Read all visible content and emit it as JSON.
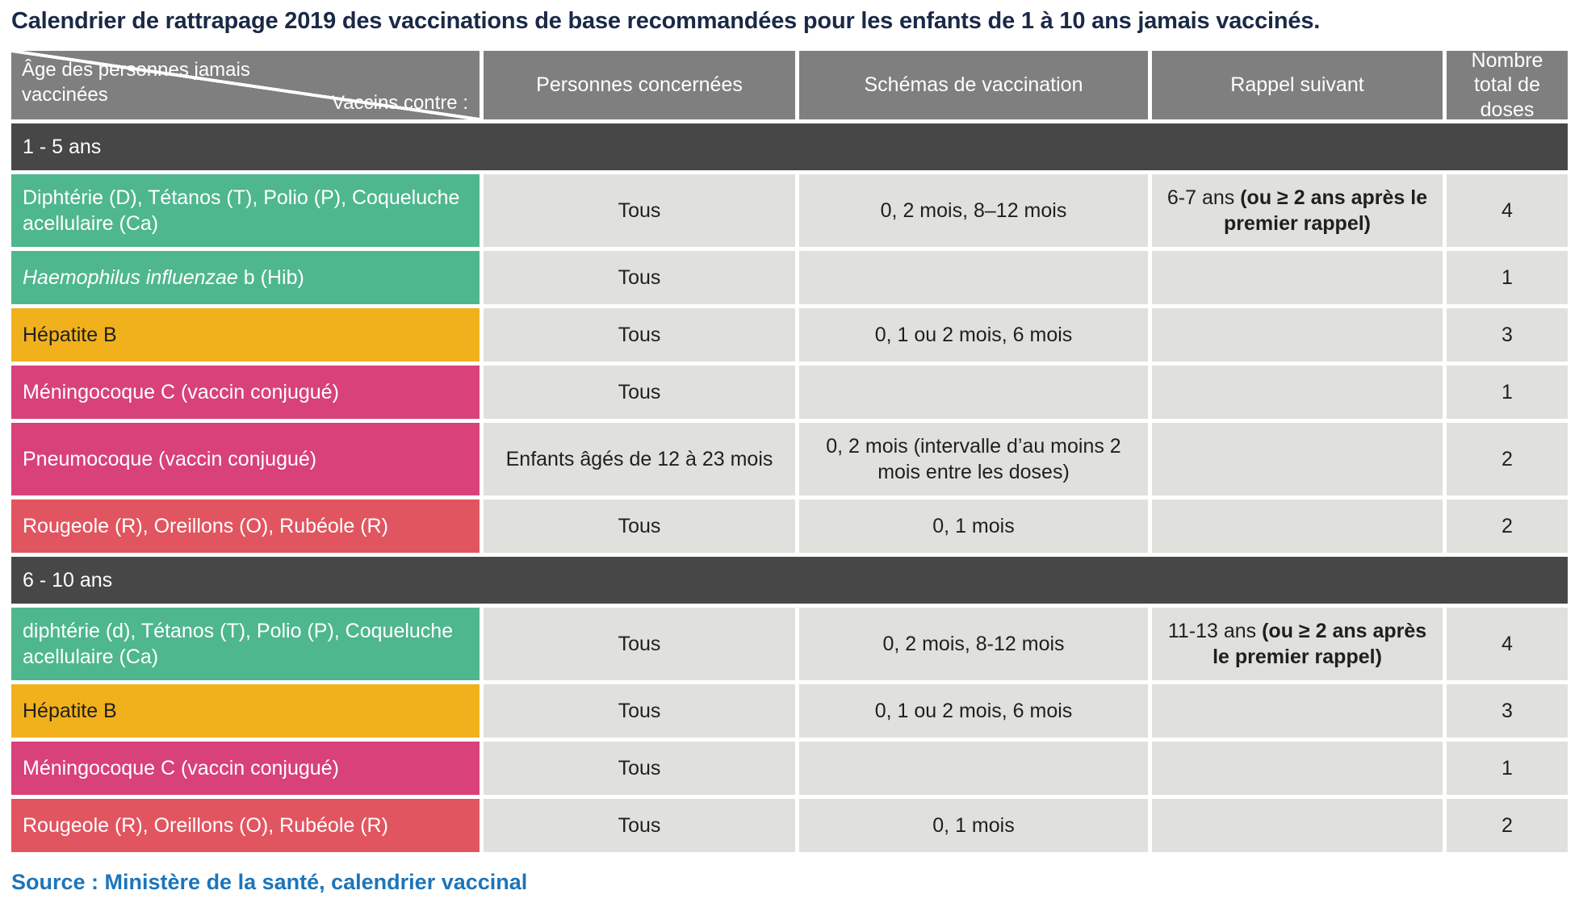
{
  "title": "Calendrier de rattrapage 2019 des vaccinations de base recommandées pour les enfants de 1 à 10 ans jamais vaccinés.",
  "colors": {
    "header_gray": "#7f7f7f",
    "section_dark": "#474747",
    "cell_light": "#e0e0dc",
    "row_green": "#4eb78d",
    "row_yellow": "#f1b11c",
    "row_pink": "#d84179",
    "row_red": "#e15560",
    "title_navy": "#1a2946",
    "source_blue": "#1c75bb"
  },
  "header": {
    "corner_top": "Âge des personnes jamais vaccinées",
    "corner_bottom": "Vaccins contre :",
    "col_personnes": "Personnes concernées",
    "col_schemas": "Schémas de vaccination",
    "col_rappel": "Rappel suivant",
    "col_doses": "Nombre total de doses"
  },
  "sections": [
    {
      "label": "1 - 5 ans",
      "rows": [
        {
          "vaccine": [
            {
              "t": "Diphtérie (D), Tétanos (T), Polio (P), Coqueluche acellulaire (Ca)"
            }
          ],
          "personnes": "Tous",
          "schema": "0, 2 mois, 8–12 mois",
          "rappel": [
            {
              "t": "6-7 ans "
            },
            {
              "t": "(ou ≥ 2 ans après le premier rappel)",
              "b": true
            }
          ],
          "doses": "4"
        },
        {
          "vaccine": [
            {
              "t": "Haemophilus influenzae",
              "i": true
            },
            {
              "t": " b (Hib)"
            }
          ],
          "personnes": "Tous",
          "schema": "",
          "rappel": [],
          "doses": "1"
        },
        {
          "vaccine": [
            {
              "t": "Hépatite B"
            }
          ],
          "personnes": "Tous",
          "schema": "0, 1 ou 2 mois, 6 mois",
          "rappel": [],
          "doses": "3"
        },
        {
          "vaccine": [
            {
              "t": "Méningocoque C (vaccin conjugué)"
            }
          ],
          "personnes": "Tous",
          "schema": "",
          "rappel": [],
          "doses": "1"
        },
        {
          "vaccine": [
            {
              "t": "Pneumocoque (vaccin conjugué)"
            }
          ],
          "personnes": "Enfants âgés de 12 à 23 mois",
          "schema": "0, 2 mois (intervalle d’au moins 2 mois entre les doses)",
          "rappel": [],
          "doses": "2"
        },
        {
          "vaccine": [
            {
              "t": "Rougeole (R), Oreillons (O), Rubéole (R)"
            }
          ],
          "personnes": "Tous",
          "schema": "0, 1 mois",
          "rappel": [],
          "doses": "2"
        }
      ]
    },
    {
      "label": "6 - 10 ans",
      "rows": [
        {
          "vaccine": [
            {
              "t": "diphtérie (d), Tétanos (T), Polio (P), Coqueluche acellulaire (Ca)"
            }
          ],
          "personnes": "Tous",
          "schema": "0, 2 mois, 8-12 mois",
          "rappel": [
            {
              "t": "11-13 ans "
            },
            {
              "t": "(ou ≥ 2 ans après le premier rappel)",
              "b": true
            }
          ],
          "doses": "4"
        },
        {
          "vaccine": [
            {
              "t": "Hépatite B"
            }
          ],
          "personnes": "Tous",
          "schema": "0, 1 ou 2 mois, 6 mois",
          "rappel": [],
          "doses": "3"
        },
        {
          "vaccine": [
            {
              "t": "Méningocoque C (vaccin conjugué)"
            }
          ],
          "personnes": "Tous",
          "schema": "",
          "rappel": [],
          "doses": "1"
        },
        {
          "vaccine": [
            {
              "t": "Rougeole (R), Oreillons (O), Rubéole (R)"
            }
          ],
          "personnes": "Tous",
          "schema": "0, 1 mois",
          "rappel": [],
          "doses": "2"
        }
      ]
    }
  ],
  "source": "Source : Ministère de la santé, calendrier vaccinal"
}
